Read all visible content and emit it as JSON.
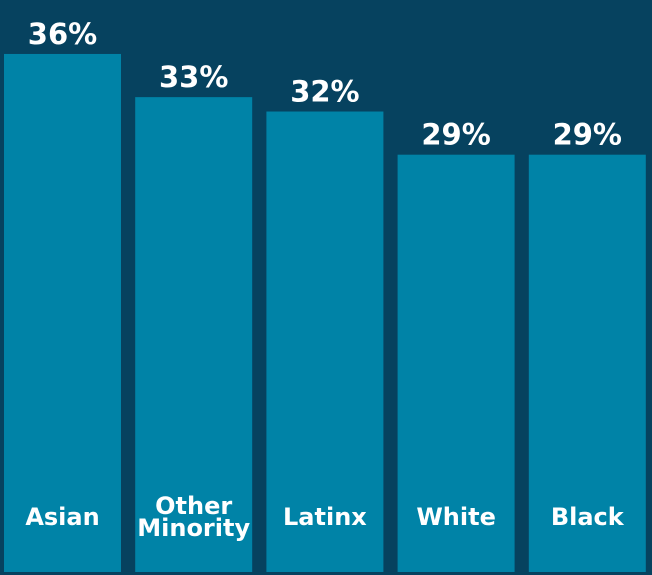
{
  "chart_data": {
    "type": "bar",
    "categories": [
      "Asian",
      "Other Minority",
      "Latinx",
      "White",
      "Black"
    ],
    "category_label_lines": [
      [
        "Asian"
      ],
      [
        "Other",
        "Minority"
      ],
      [
        "Latinx"
      ],
      [
        "White"
      ],
      [
        "Black"
      ]
    ],
    "values": [
      36,
      33,
      32,
      29,
      29
    ],
    "value_labels": [
      "36%",
      "33%",
      "32%",
      "29%",
      "29%"
    ],
    "title": "",
    "xlabel": "",
    "ylabel": "",
    "ylim": [
      0,
      40
    ],
    "grid": false,
    "legend": "none"
  },
  "colors": {
    "background": "#06425f",
    "bar": "#0083a7",
    "text": "#ffffff"
  }
}
